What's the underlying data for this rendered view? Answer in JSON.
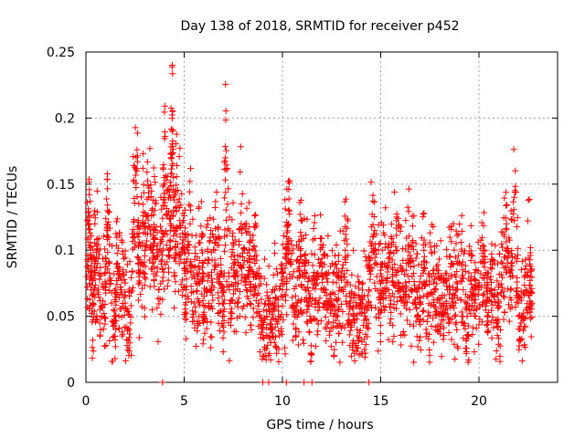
{
  "chart_data": {
    "type": "scatter",
    "title": "Day 138 of 2018, SRMTID for receiver p452",
    "xlabel": "GPS time / hours",
    "ylabel": "SRMTID / TECUs",
    "xlim": [
      0,
      24
    ],
    "ylim": [
      0,
      0.25
    ],
    "xticks": [
      0,
      5,
      10,
      15,
      20
    ],
    "yticks": [
      0,
      0.05,
      0.1,
      0.15,
      0.2,
      0.25
    ],
    "x_tick_labels": [
      "0",
      "5",
      "10",
      "15",
      "20"
    ],
    "y_tick_labels": [
      "0",
      "0.05",
      "0.1",
      "0.15",
      "0.2",
      "0.25"
    ],
    "grid": true,
    "marker": "+",
    "series": [
      {
        "name": "SRMTID",
        "color": "#ff0000",
        "x": [
          0.05,
          0.15,
          0.25,
          0.35,
          0.45,
          0.6,
          0.8,
          1.0,
          1.1,
          1.3,
          1.5,
          1.6,
          1.8,
          2.0,
          2.2,
          2.4,
          2.6,
          2.7,
          2.9,
          3.0,
          3.2,
          3.4,
          3.5,
          3.7,
          3.9,
          4.0,
          4.2,
          4.3,
          4.4,
          4.5,
          4.6,
          4.8,
          5.0,
          5.1,
          5.3,
          5.5,
          5.7,
          5.9,
          6.0,
          6.2,
          6.4,
          6.6,
          6.8,
          7.0,
          7.1,
          7.3,
          7.5,
          7.7,
          7.9,
          8.1,
          8.3,
          8.4,
          8.6,
          8.8,
          9.0,
          9.2,
          9.4,
          9.6,
          9.8,
          10.0,
          10.2,
          10.3,
          10.5,
          10.7,
          10.9,
          11.0,
          11.2,
          11.4,
          11.6,
          11.8,
          12.0,
          12.2,
          12.4,
          12.6,
          12.8,
          13.0,
          13.2,
          13.4,
          13.6,
          13.8,
          14.0,
          14.2,
          14.4,
          14.6,
          14.8,
          15.0,
          15.2,
          15.4,
          15.6,
          15.8,
          16.0,
          16.2,
          16.4,
          16.6,
          16.8,
          17.0,
          17.2,
          17.4,
          17.6,
          17.8,
          18.0,
          18.2,
          18.4,
          18.6,
          18.8,
          19.0,
          19.2,
          19.4,
          19.6,
          19.8,
          20.0,
          20.2,
          20.4,
          20.6,
          20.8,
          21.0,
          21.2,
          21.4,
          21.6,
          21.8,
          22.0,
          22.2,
          22.4,
          22.6,
          22.7
        ],
        "y": [
          0.08,
          0.12,
          0.07,
          0.06,
          0.09,
          0.1,
          0.05,
          0.07,
          0.13,
          0.06,
          0.05,
          0.09,
          0.07,
          0.06,
          0.04,
          0.11,
          0.16,
          0.08,
          0.12,
          0.1,
          0.14,
          0.09,
          0.13,
          0.07,
          0.11,
          0.15,
          0.1,
          0.12,
          0.19,
          0.08,
          0.13,
          0.11,
          0.09,
          0.07,
          0.12,
          0.06,
          0.08,
          0.1,
          0.05,
          0.09,
          0.07,
          0.11,
          0.08,
          0.06,
          0.17,
          0.07,
          0.09,
          0.06,
          0.12,
          0.08,
          0.1,
          0.07,
          0.09,
          0.06,
          0.04,
          0.05,
          0.04,
          0.06,
          0.05,
          0.07,
          0.09,
          0.12,
          0.08,
          0.06,
          0.1,
          0.09,
          0.07,
          0.05,
          0.08,
          0.06,
          0.09,
          0.07,
          0.06,
          0.05,
          0.08,
          0.07,
          0.1,
          0.06,
          0.05,
          0.04,
          0.06,
          0.05,
          0.07,
          0.11,
          0.08,
          0.06,
          0.09,
          0.07,
          0.08,
          0.1,
          0.07,
          0.06,
          0.09,
          0.08,
          0.07,
          0.06,
          0.1,
          0.05,
          0.08,
          0.07,
          0.06,
          0.05,
          0.07,
          0.08,
          0.06,
          0.09,
          0.07,
          0.05,
          0.08,
          0.06,
          0.07,
          0.09,
          0.06,
          0.08,
          0.07,
          0.06,
          0.09,
          0.1,
          0.07,
          0.14,
          0.06,
          0.05,
          0.07,
          0.08,
          0.06
        ],
        "zero_markers_x": [
          3.9,
          9.0,
          9.3,
          10.2,
          11.1,
          11.5,
          14.4
        ]
      }
    ],
    "annotations": []
  }
}
